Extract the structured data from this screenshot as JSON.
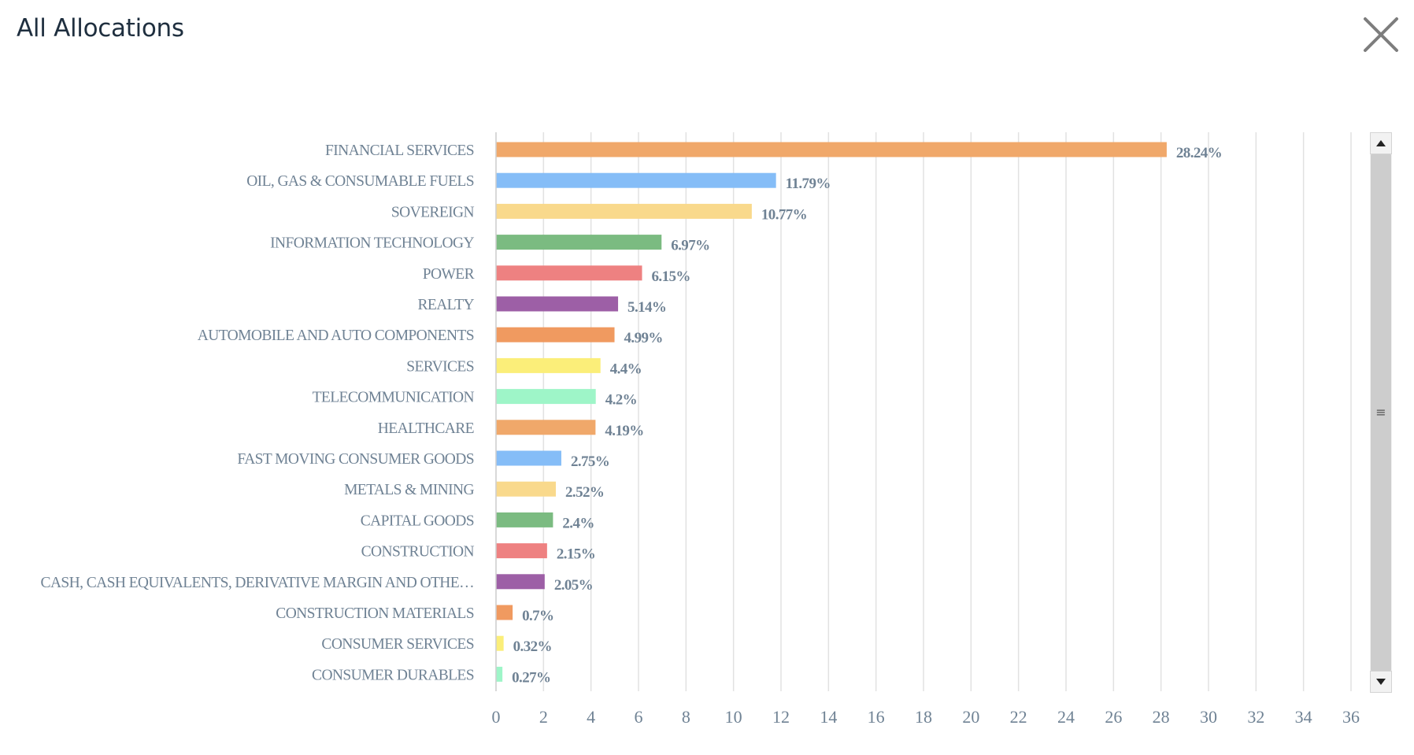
{
  "modal": {
    "title": "All Allocations",
    "close_icon": "close-icon"
  },
  "scrollbar": {
    "up_icon": "arrow-up-icon",
    "down_icon": "arrow-down-icon",
    "grip_icon": "grip-lines-icon",
    "grip_glyph": "≡"
  },
  "chart_data": {
    "type": "bar",
    "orientation": "horizontal",
    "title": "",
    "xlabel": "",
    "ylabel": "",
    "xlim": [
      0,
      36
    ],
    "x_ticks": [
      0,
      2,
      4,
      6,
      8,
      10,
      12,
      14,
      16,
      18,
      20,
      22,
      24,
      26,
      28,
      30,
      32,
      34,
      36
    ],
    "grid": "vertical",
    "legend": "none",
    "value_suffix": "%",
    "categories": [
      "FINANCIAL SERVICES",
      "OIL, GAS & CONSUMABLE FUELS",
      "SOVEREIGN",
      "INFORMATION TECHNOLOGY",
      "POWER",
      "REALTY",
      "AUTOMOBILE AND AUTO COMPONENTS",
      "SERVICES",
      "TELECOMMUNICATION",
      "HEALTHCARE",
      "FAST MOVING CONSUMER GOODS",
      "METALS & MINING",
      "CAPITAL GOODS",
      "CONSTRUCTION",
      "CASH, CASH EQUIVALENTS, DERIVATIVE MARGIN AND OTHE…",
      "CONSTRUCTION MATERIALS",
      "CONSUMER SERVICES",
      "CONSUMER DURABLES"
    ],
    "values": [
      28.24,
      11.79,
      10.77,
      6.97,
      6.15,
      5.14,
      4.99,
      4.4,
      4.2,
      4.19,
      2.75,
      2.52,
      2.4,
      2.15,
      2.05,
      0.7,
      0.32,
      0.27
    ],
    "value_labels": [
      "28.24%",
      "11.79%",
      "10.77%",
      "6.97%",
      "6.15%",
      "5.14%",
      "4.99%",
      "4.4%",
      "4.2%",
      "4.19%",
      "2.75%",
      "2.52%",
      "2.4%",
      "2.15%",
      "2.05%",
      "0.7%",
      "0.32%",
      "0.27%"
    ],
    "colors": [
      "#f0a86a",
      "#85bdf7",
      "#f9d98c",
      "#7bbb81",
      "#ee8181",
      "#9d5fa6",
      "#f09a60",
      "#fbee79",
      "#9ef5c8",
      "#f0a86a",
      "#85bdf7",
      "#f9d98c",
      "#7bbb81",
      "#ee8181",
      "#9d5fa6",
      "#f09a60",
      "#fbee79",
      "#9ef5c8"
    ],
    "label_color": "#6f8294",
    "grid_color": "#e2e2e2"
  }
}
